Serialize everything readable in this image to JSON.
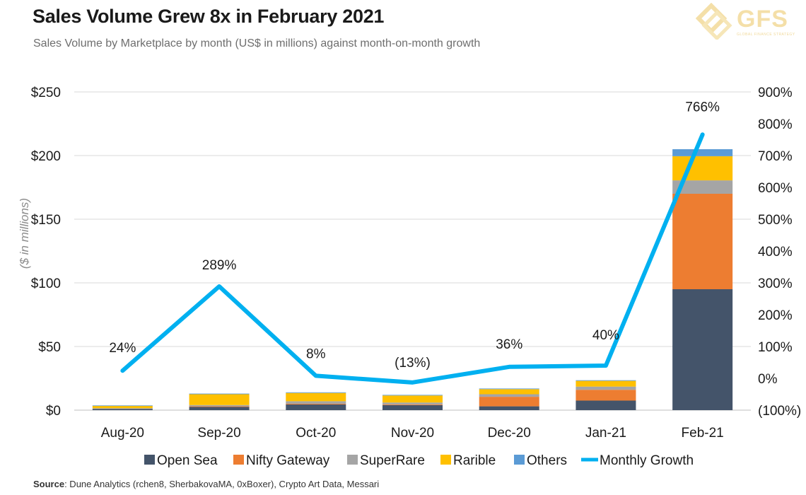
{
  "header": {
    "title": "Sales Volume Grew 8x in February 2021",
    "subtitle": "Sales Volume by Marketplace by month  (US$ in millions) against month-on-month growth"
  },
  "logo": {
    "text": "GFS",
    "tagline": "GLOBAL FINANCE STRATEGY"
  },
  "footer": {
    "source_label": "Source",
    "source_text": ": Dune Analytics (rchen8, SherbakovaMA, 0xBoxer), Crypto Art Data, Messari"
  },
  "chart_data": {
    "type": "bar",
    "stacked": true,
    "categories": [
      "Aug-20",
      "Sep-20",
      "Oct-20",
      "Nov-20",
      "Dec-20",
      "Jan-21",
      "Feb-21"
    ],
    "series": [
      {
        "name": "Open Sea",
        "color": "#44546a",
        "values": [
          1,
          2.5,
          4.5,
          4,
          3,
          7.5,
          95
        ]
      },
      {
        "name": "Nifty Gateway",
        "color": "#ed7d31",
        "values": [
          0,
          0.5,
          0.5,
          0.5,
          7.5,
          8.5,
          75
        ]
      },
      {
        "name": "SuperRare",
        "color": "#a5a5a5",
        "values": [
          0.5,
          1,
          2,
          1.5,
          2,
          2.5,
          10.5
        ]
      },
      {
        "name": "Rarible",
        "color": "#ffc000",
        "values": [
          2,
          8.5,
          6.5,
          5.5,
          4,
          4.5,
          19
        ]
      },
      {
        "name": "Others",
        "color": "#5b9bd5",
        "values": [
          0.2,
          0.5,
          0.5,
          0.5,
          0.5,
          0.5,
          5.5
        ]
      }
    ],
    "line_series": {
      "name": "Monthly Growth",
      "color": "#00b0f0",
      "values": [
        24,
        289,
        8,
        -13,
        36,
        40,
        766
      ],
      "labels": [
        "24%",
        "289%",
        "8%",
        "(13%)",
        "36%",
        "40%",
        "766%"
      ]
    },
    "ylabel": "($ in millions)",
    "ylim": [
      0,
      250
    ],
    "y_ticks": [
      "$0",
      "$50",
      "$100",
      "$150",
      "$200",
      "$250"
    ],
    "y2lim": [
      -100,
      900
    ],
    "y2_ticks": [
      "(100%)",
      "0%",
      "100%",
      "200%",
      "300%",
      "400%",
      "500%",
      "600%",
      "700%",
      "800%",
      "900%"
    ],
    "grid": true,
    "legend": "bottom"
  }
}
